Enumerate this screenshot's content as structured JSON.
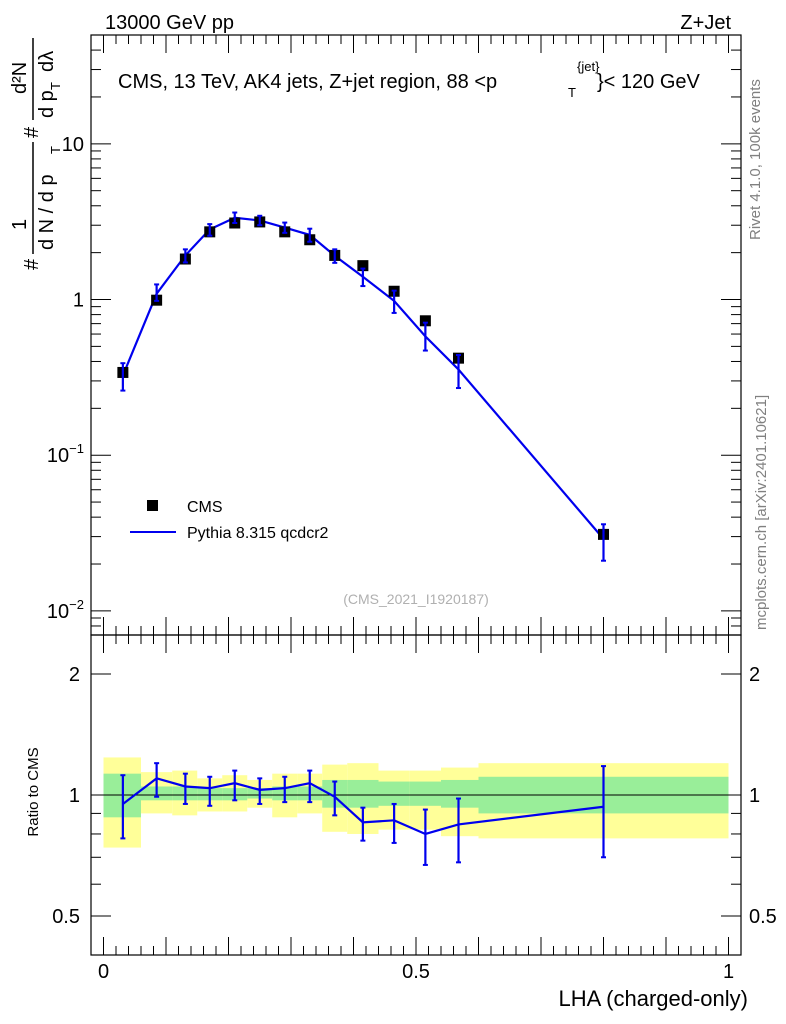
{
  "header": {
    "left": "13000 GeV pp",
    "right": "Z+Jet"
  },
  "title": {
    "main": "CMS, 13 TeV, AK4 jets, Z+jet region, 88 <p",
    "sub": "T",
    "sup": "{jet}",
    "tail": "}< 120 GeV"
  },
  "side": {
    "rivet": "Rivet 4.1.0,  100k events",
    "mcplots": "mcplots.cern.ch [arXiv:2401.10621]"
  },
  "analysis_id": "(CMS_2021_I1920187)",
  "y_axis_label": {
    "hash": "#",
    "one": "1",
    "dN": "d N / d p",
    "dN_sub": "T",
    "hash2": "#",
    "dp": "d p",
    "dp_sub": "T",
    "d2N": "d²N",
    "dlambda": "dλ"
  },
  "legend": {
    "cms": "CMS",
    "pythia": "Pythia 8.315 qcdcr2"
  },
  "colors": {
    "data": "#000000",
    "mc": "#0000ee",
    "band_stat": "#99ee99",
    "band_tot": "#ffff99"
  },
  "chart_data": [
    {
      "type": "scatter",
      "panel": "main",
      "title": "CMS, 13 TeV, AK4 jets, Z+jet region, 88 <p_T^{jet}< 120 GeV",
      "xlabel": "LHA (charged-only)",
      "yscale": "log",
      "xlim": [
        -0.02,
        1.02
      ],
      "ylim": [
        0.007,
        50
      ],
      "y_ticks": [
        {
          "v": 0.01,
          "base": "10",
          "exp": "−2"
        },
        {
          "v": 0.1,
          "base": "10",
          "exp": "−1"
        },
        {
          "v": 1,
          "base": "1",
          "exp": ""
        },
        {
          "v": 10,
          "base": "10",
          "exp": ""
        }
      ],
      "series": [
        {
          "name": "CMS",
          "x": [
            0.031,
            0.085,
            0.131,
            0.17,
            0.21,
            0.25,
            0.29,
            0.33,
            0.37,
            0.415,
            0.465,
            0.515,
            0.568,
            0.8
          ],
          "x_err": [
            0.0,
            0.0,
            0.0,
            0.0,
            0.0,
            0.0,
            0.0,
            0.0,
            0.0,
            0.0,
            0.0,
            0.0,
            0.0,
            0.0
          ],
          "y": [
            0.34,
            0.99,
            1.82,
            2.72,
            3.1,
            3.15,
            2.72,
            2.42,
            1.92,
            1.65,
            1.13,
            0.73,
            0.42,
            0.031
          ]
        },
        {
          "name": "Pythia 8.315 qcdcr2",
          "x": [
            0.031,
            0.085,
            0.131,
            0.17,
            0.21,
            0.25,
            0.29,
            0.33,
            0.37,
            0.415,
            0.465,
            0.515,
            0.568,
            0.8
          ],
          "y": [
            0.325,
            1.09,
            1.92,
            2.82,
            3.35,
            3.22,
            2.9,
            2.6,
            1.91,
            1.4,
            0.98,
            0.58,
            0.355,
            0.029
          ],
          "y_lo": [
            0.26,
            0.98,
            1.73,
            2.57,
            3.1,
            3.0,
            2.68,
            2.35,
            1.72,
            1.22,
            0.82,
            0.47,
            0.27,
            0.021
          ],
          "y_hi": [
            0.39,
            1.25,
            2.1,
            3.05,
            3.62,
            3.45,
            3.12,
            2.85,
            2.1,
            1.58,
            1.14,
            0.71,
            0.44,
            0.036
          ]
        }
      ]
    },
    {
      "type": "line",
      "panel": "ratio",
      "ylabel": "Ratio to CMS",
      "xlabel": "LHA (charged-only)",
      "yscale": "log",
      "xlim": [
        -0.02,
        1.02
      ],
      "ylim": [
        0.4,
        2.5
      ],
      "y_ticks": [
        {
          "v": 0.5,
          "label": "0.5"
        },
        {
          "v": 1,
          "label": "1"
        },
        {
          "v": 2,
          "label": "2"
        }
      ],
      "x_ticks": [
        {
          "v": 0,
          "label": "0"
        },
        {
          "v": 0.5,
          "label": "0.5"
        },
        {
          "v": 1,
          "label": "1"
        }
      ],
      "bands": {
        "edges": [
          0.0,
          0.06,
          0.11,
          0.15,
          0.19,
          0.23,
          0.27,
          0.31,
          0.35,
          0.39,
          0.44,
          0.49,
          0.54,
          0.6,
          1.0
        ],
        "stat_lo": [
          0.88,
          0.97,
          0.97,
          0.97,
          0.97,
          0.98,
          0.97,
          0.97,
          0.93,
          0.93,
          0.94,
          0.94,
          0.93,
          0.9
        ],
        "stat_hi": [
          1.13,
          1.05,
          1.05,
          1.04,
          1.04,
          1.04,
          1.05,
          1.05,
          1.09,
          1.09,
          1.08,
          1.08,
          1.09,
          1.11
        ],
        "tot_lo": [
          0.74,
          0.9,
          0.89,
          0.91,
          0.91,
          0.93,
          0.88,
          0.9,
          0.81,
          0.8,
          0.82,
          0.82,
          0.79,
          0.78
        ],
        "tot_hi": [
          1.24,
          1.14,
          1.15,
          1.1,
          1.12,
          1.09,
          1.13,
          1.13,
          1.19,
          1.2,
          1.15,
          1.15,
          1.17,
          1.2
        ]
      },
      "series": [
        {
          "name": "Pythia 8.315 qcdcr2 / CMS",
          "x": [
            0.031,
            0.085,
            0.131,
            0.17,
            0.21,
            0.25,
            0.29,
            0.33,
            0.37,
            0.415,
            0.465,
            0.515,
            0.568,
            0.8
          ],
          "y": [
            0.95,
            1.1,
            1.05,
            1.04,
            1.07,
            1.03,
            1.04,
            1.07,
            0.99,
            0.855,
            0.865,
            0.8,
            0.845,
            0.935
          ],
          "y_lo": [
            0.78,
            0.99,
            0.95,
            0.94,
            0.97,
            0.95,
            0.96,
            0.96,
            0.89,
            0.77,
            0.76,
            0.67,
            0.68,
            0.7
          ],
          "y_hi": [
            1.12,
            1.2,
            1.13,
            1.11,
            1.15,
            1.1,
            1.11,
            1.15,
            1.08,
            0.93,
            0.95,
            0.92,
            0.98,
            1.18
          ]
        }
      ]
    }
  ]
}
